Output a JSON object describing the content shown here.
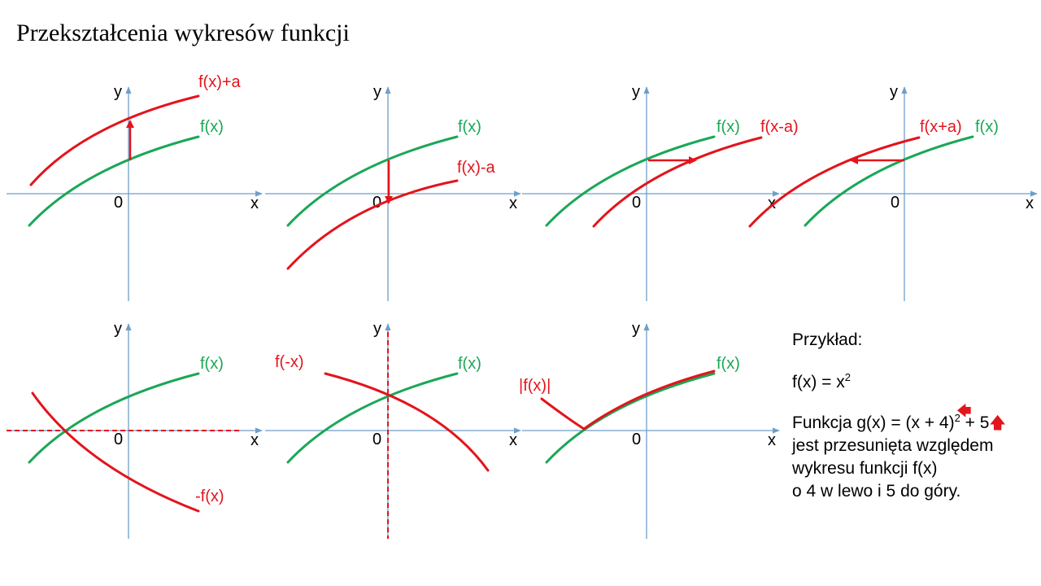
{
  "title": "Przekształcenia wykresów funkcji",
  "colors": {
    "base": "#1aa757",
    "transformed": "#e3141c",
    "axis": "#6f9fc9",
    "text": "#000000"
  },
  "axis_labels": {
    "x": "x",
    "y": "y",
    "origin": "0"
  },
  "panels": [
    {
      "id": "shift-up",
      "base_label": "f(x)",
      "transformed_label": "f(x)+a"
    },
    {
      "id": "shift-down",
      "base_label": "f(x)",
      "transformed_label": "f(x)-a"
    },
    {
      "id": "shift-right",
      "base_label": "f(x)",
      "transformed_label": "f(x-a)"
    },
    {
      "id": "shift-left",
      "base_label": "f(x)",
      "transformed_label": "f(x+a)"
    },
    {
      "id": "reflect-x",
      "base_label": "f(x)",
      "transformed_label": "-f(x)"
    },
    {
      "id": "reflect-y",
      "base_label": "f(x)",
      "transformed_label": "f(-x)"
    },
    {
      "id": "absolute",
      "base_label": "f(x)",
      "transformed_label": "|f(x)|"
    }
  ],
  "example": {
    "heading": "Przykład:",
    "fx_lhs": "f(x) = x",
    "fx_exp": "2",
    "g_part1": "Funkcja g(x) = (x  + 4)",
    "g_exp": "2",
    "g_part2": " + 5",
    "line2": "jest przesunięta względem",
    "line3": "wykresu funkcji  f(x)",
    "line4": "o 4 w lewo i 5 do góry."
  }
}
